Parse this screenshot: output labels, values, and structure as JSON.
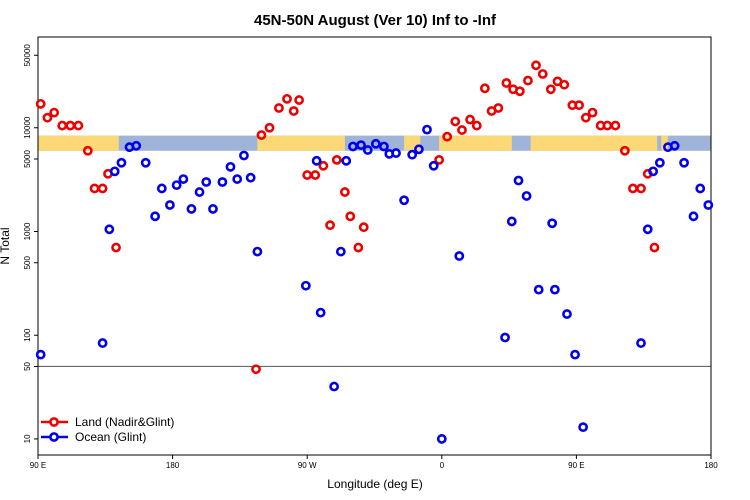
{
  "chart_data": {
    "type": "scatter",
    "title": "45N-50N August (Ver 10)   Inf to -Inf",
    "xlabel": "Longitude (deg E)",
    "ylabel": "N Total",
    "y_scale": "log",
    "ylim": [
      7,
      75000
    ],
    "y_ticks": [
      {
        "value": 10,
        "label": "10"
      },
      {
        "value": 50,
        "label": "50"
      },
      {
        "value": 100,
        "label": "100"
      },
      {
        "value": 500,
        "label": "500"
      },
      {
        "value": 1000,
        "label": "1000"
      },
      {
        "value": 5000,
        "label": "5000"
      },
      {
        "value": 10000,
        "label": "10000"
      },
      {
        "value": 50000,
        "label": "50000"
      }
    ],
    "x_ticks": [
      {
        "value": 0,
        "label": "90 E"
      },
      {
        "value": 1,
        "label": "180"
      },
      {
        "value": 2,
        "label": "90 W"
      },
      {
        "value": 3,
        "label": "0"
      },
      {
        "value": 4,
        "label": "90 E"
      },
      {
        "value": 5,
        "label": "180"
      }
    ],
    "reference_line": 50,
    "colors": {
      "land": "#ee0000",
      "ocean": "#0000ee",
      "map_land": "#fdd876",
      "map_ocean": "#9fb4d8"
    },
    "map_band": {
      "y_range": [
        6000,
        8400
      ],
      "land_segments": [
        [
          0,
          0.6
        ],
        [
          1.63,
          2.28
        ],
        [
          2.72,
          2.84
        ],
        [
          2.98,
          3.52
        ],
        [
          3.66,
          4.6
        ],
        [
          4.63,
          4.68
        ]
      ]
    },
    "series": [
      {
        "name": "Land (Nadir&Glint)",
        "color": "#ee0000",
        "points": [
          {
            "x": 0.02,
            "y": 17000
          },
          {
            "x": 0.07,
            "y": 12500
          },
          {
            "x": 0.12,
            "y": 14000
          },
          {
            "x": 0.18,
            "y": 10500
          },
          {
            "x": 0.24,
            "y": 10500
          },
          {
            "x": 0.3,
            "y": 10500
          },
          {
            "x": 0.37,
            "y": 6000
          },
          {
            "x": 0.42,
            "y": 2600
          },
          {
            "x": 0.48,
            "y": 2600
          },
          {
            "x": 0.52,
            "y": 3600
          },
          {
            "x": 0.58,
            "y": 700
          },
          {
            "x": 1.62,
            "y": 47
          },
          {
            "x": 1.66,
            "y": 8500
          },
          {
            "x": 1.72,
            "y": 10000
          },
          {
            "x": 1.79,
            "y": 15500
          },
          {
            "x": 1.85,
            "y": 19000
          },
          {
            "x": 1.9,
            "y": 14500
          },
          {
            "x": 1.94,
            "y": 18500
          },
          {
            "x": 2.0,
            "y": 3500
          },
          {
            "x": 2.06,
            "y": 3500
          },
          {
            "x": 2.12,
            "y": 4300
          },
          {
            "x": 2.17,
            "y": 1150
          },
          {
            "x": 2.22,
            "y": 4900
          },
          {
            "x": 2.28,
            "y": 2400
          },
          {
            "x": 2.32,
            "y": 1400
          },
          {
            "x": 2.38,
            "y": 700
          },
          {
            "x": 2.42,
            "y": 1100
          },
          {
            "x": 2.98,
            "y": 4900
          },
          {
            "x": 3.04,
            "y": 8200
          },
          {
            "x": 3.1,
            "y": 11500
          },
          {
            "x": 3.15,
            "y": 9500
          },
          {
            "x": 3.21,
            "y": 12000
          },
          {
            "x": 3.26,
            "y": 10500
          },
          {
            "x": 3.32,
            "y": 24000
          },
          {
            "x": 3.37,
            "y": 14500
          },
          {
            "x": 3.42,
            "y": 15500
          },
          {
            "x": 3.48,
            "y": 27000
          },
          {
            "x": 3.53,
            "y": 23500
          },
          {
            "x": 3.58,
            "y": 22500
          },
          {
            "x": 3.64,
            "y": 28500
          },
          {
            "x": 3.7,
            "y": 40000
          },
          {
            "x": 3.75,
            "y": 33000
          },
          {
            "x": 3.81,
            "y": 23500
          },
          {
            "x": 3.86,
            "y": 28000
          },
          {
            "x": 3.91,
            "y": 26000
          },
          {
            "x": 3.97,
            "y": 16500
          },
          {
            "x": 4.02,
            "y": 16500
          },
          {
            "x": 4.07,
            "y": 12500
          },
          {
            "x": 4.12,
            "y": 14000
          },
          {
            "x": 4.18,
            "y": 10500
          },
          {
            "x": 4.23,
            "y": 10500
          },
          {
            "x": 4.29,
            "y": 10500
          },
          {
            "x": 4.36,
            "y": 6000
          },
          {
            "x": 4.42,
            "y": 2600
          },
          {
            "x": 4.48,
            "y": 2600
          },
          {
            "x": 4.53,
            "y": 3600
          },
          {
            "x": 4.58,
            "y": 700
          }
        ]
      },
      {
        "name": "Ocean (Glint)",
        "color": "#0000ee",
        "points": [
          {
            "x": 0.02,
            "y": 65
          },
          {
            "x": 0.48,
            "y": 84
          },
          {
            "x": 0.53,
            "y": 1050
          },
          {
            "x": 0.57,
            "y": 3800
          },
          {
            "x": 0.62,
            "y": 4600
          },
          {
            "x": 0.68,
            "y": 6500
          },
          {
            "x": 0.73,
            "y": 6700
          },
          {
            "x": 0.8,
            "y": 4600
          },
          {
            "x": 0.87,
            "y": 1400
          },
          {
            "x": 0.92,
            "y": 2600
          },
          {
            "x": 0.98,
            "y": 1800
          },
          {
            "x": 1.03,
            "y": 2800
          },
          {
            "x": 1.08,
            "y": 3200
          },
          {
            "x": 1.14,
            "y": 1650
          },
          {
            "x": 1.2,
            "y": 2400
          },
          {
            "x": 1.25,
            "y": 3000
          },
          {
            "x": 1.3,
            "y": 1650
          },
          {
            "x": 1.37,
            "y": 3000
          },
          {
            "x": 1.43,
            "y": 4200
          },
          {
            "x": 1.48,
            "y": 3200
          },
          {
            "x": 1.53,
            "y": 5400
          },
          {
            "x": 1.58,
            "y": 3300
          },
          {
            "x": 1.63,
            "y": 640
          },
          {
            "x": 1.99,
            "y": 300
          },
          {
            "x": 2.07,
            "y": 4800
          },
          {
            "x": 2.1,
            "y": 165
          },
          {
            "x": 2.2,
            "y": 32
          },
          {
            "x": 2.25,
            "y": 640
          },
          {
            "x": 2.29,
            "y": 4800
          },
          {
            "x": 2.34,
            "y": 6600
          },
          {
            "x": 2.4,
            "y": 6800
          },
          {
            "x": 2.45,
            "y": 6100
          },
          {
            "x": 2.51,
            "y": 7000
          },
          {
            "x": 2.57,
            "y": 6600
          },
          {
            "x": 2.61,
            "y": 5600
          },
          {
            "x": 2.66,
            "y": 5700
          },
          {
            "x": 2.72,
            "y": 2000
          },
          {
            "x": 2.78,
            "y": 5500
          },
          {
            "x": 2.83,
            "y": 6200
          },
          {
            "x": 2.89,
            "y": 9600
          },
          {
            "x": 2.94,
            "y": 4300
          },
          {
            "x": 3.0,
            "y": 10
          },
          {
            "x": 3.13,
            "y": 580
          },
          {
            "x": 3.47,
            "y": 95
          },
          {
            "x": 3.52,
            "y": 1250
          },
          {
            "x": 3.57,
            "y": 3100
          },
          {
            "x": 3.63,
            "y": 2200
          },
          {
            "x": 3.72,
            "y": 275
          },
          {
            "x": 3.82,
            "y": 1200
          },
          {
            "x": 3.84,
            "y": 275
          },
          {
            "x": 3.93,
            "y": 160
          },
          {
            "x": 3.99,
            "y": 65
          },
          {
            "x": 4.05,
            "y": 13
          },
          {
            "x": 4.48,
            "y": 84
          },
          {
            "x": 4.53,
            "y": 1050
          },
          {
            "x": 4.57,
            "y": 3800
          },
          {
            "x": 4.62,
            "y": 4600
          },
          {
            "x": 4.68,
            "y": 6500
          },
          {
            "x": 4.73,
            "y": 6700
          },
          {
            "x": 4.8,
            "y": 4600
          },
          {
            "x": 4.87,
            "y": 1400
          },
          {
            "x": 4.92,
            "y": 2600
          },
          {
            "x": 4.98,
            "y": 1800
          }
        ]
      }
    ],
    "legend": [
      {
        "label": "Land (Nadir&Glint)",
        "color": "#ee0000"
      },
      {
        "label": "Ocean (Glint)",
        "color": "#0000ee"
      }
    ],
    "legend_position": "bottom-left"
  }
}
